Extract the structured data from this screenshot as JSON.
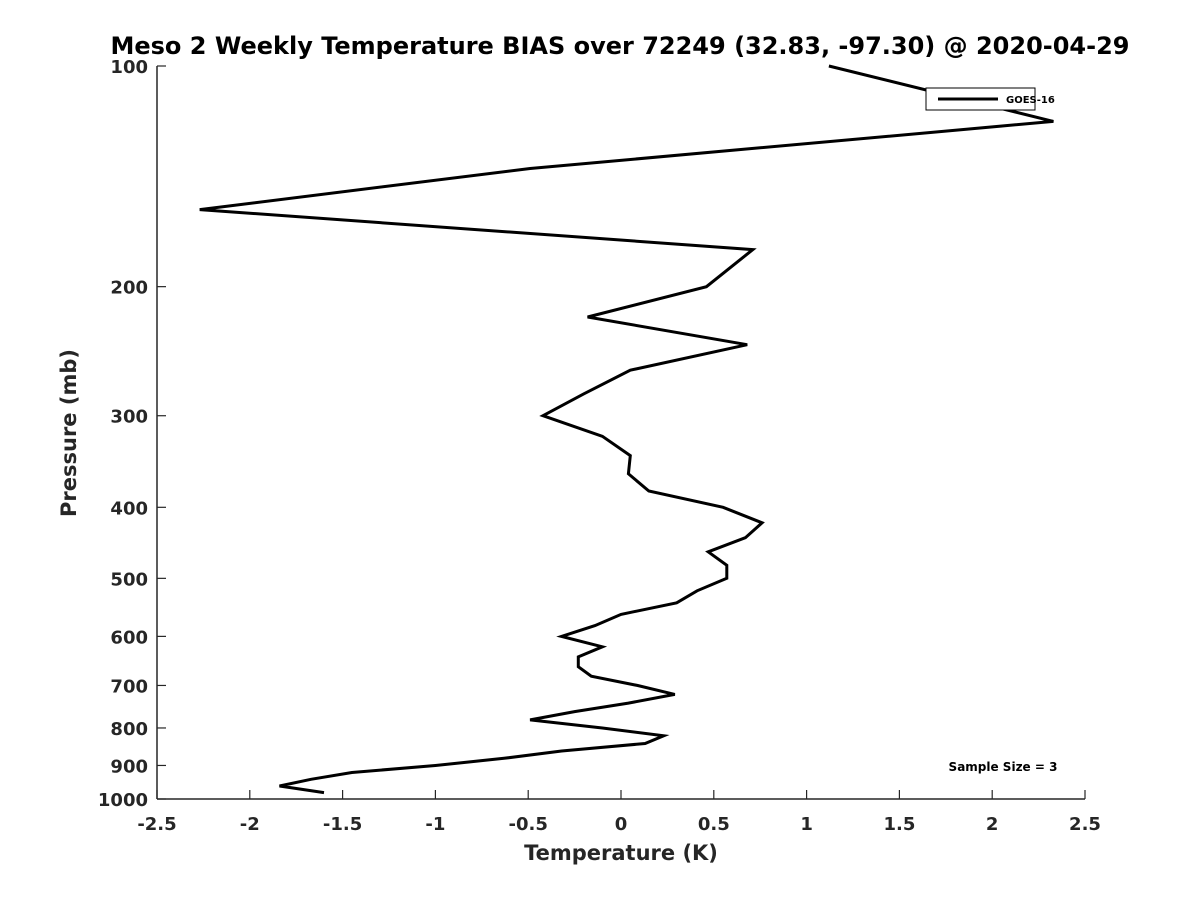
{
  "chart_data": {
    "type": "line",
    "title": "Meso 2 Weekly Temperature BIAS over 72249 (32.83, -97.30) @ 2020-04-29",
    "xlabel": "Temperature (K)",
    "ylabel": "Pressure (mb)",
    "xlim": [
      -2.5,
      2.5
    ],
    "ylim": [
      100,
      1000
    ],
    "y_scale": "log",
    "y_reversed": true,
    "grid": false,
    "legend_position": "top-right",
    "x_ticks": [
      -2.5,
      -2,
      -1.5,
      -1,
      -0.5,
      0,
      0.5,
      1,
      1.5,
      2,
      2.5
    ],
    "x_tick_labels": [
      "-2.5",
      "-2",
      "-1.5",
      "-1",
      "-0.5",
      "0",
      "0.5",
      "1",
      "1.5",
      "2",
      "2.5"
    ],
    "y_ticks": [
      100,
      200,
      300,
      400,
      500,
      600,
      700,
      800,
      900,
      1000
    ],
    "y_tick_labels": [
      "100",
      "200",
      "300",
      "400",
      "500",
      "600",
      "700",
      "800",
      "900",
      "1000"
    ],
    "series": [
      {
        "name": "GOES-16",
        "color": "#000000",
        "points": [
          [
            1.12,
            100
          ],
          [
            2.33,
            119
          ],
          [
            -0.49,
            138
          ],
          [
            -2.27,
            157
          ],
          [
            0.71,
            178
          ],
          [
            0.46,
            200
          ],
          [
            -0.18,
            220
          ],
          [
            0.68,
            240
          ],
          [
            0.05,
            260
          ],
          [
            -0.2,
            280
          ],
          [
            -0.42,
            300
          ],
          [
            -0.1,
            320
          ],
          [
            0.05,
            340
          ],
          [
            0.04,
            360
          ],
          [
            0.15,
            380
          ],
          [
            0.55,
            400
          ],
          [
            0.76,
            420
          ],
          [
            0.67,
            440
          ],
          [
            0.47,
            460
          ],
          [
            0.57,
            480
          ],
          [
            0.57,
            500
          ],
          [
            0.41,
            520
          ],
          [
            0.3,
            540
          ],
          [
            0.0,
            560
          ],
          [
            -0.14,
            580
          ],
          [
            -0.32,
            600
          ],
          [
            -0.1,
            620
          ],
          [
            -0.23,
            640
          ],
          [
            -0.23,
            660
          ],
          [
            -0.16,
            680
          ],
          [
            0.09,
            700
          ],
          [
            0.29,
            720
          ],
          [
            0.04,
            740
          ],
          [
            -0.25,
            760
          ],
          [
            -0.49,
            780
          ],
          [
            -0.1,
            800
          ],
          [
            0.23,
            820
          ],
          [
            0.13,
            840
          ],
          [
            -0.32,
            860
          ],
          [
            -0.63,
            880
          ],
          [
            -1.0,
            900
          ],
          [
            -1.45,
            920
          ],
          [
            -1.67,
            940
          ],
          [
            -1.84,
            960
          ],
          [
            -1.6,
            980
          ]
        ]
      }
    ],
    "annotations": [
      "Sample Size = 3"
    ]
  }
}
